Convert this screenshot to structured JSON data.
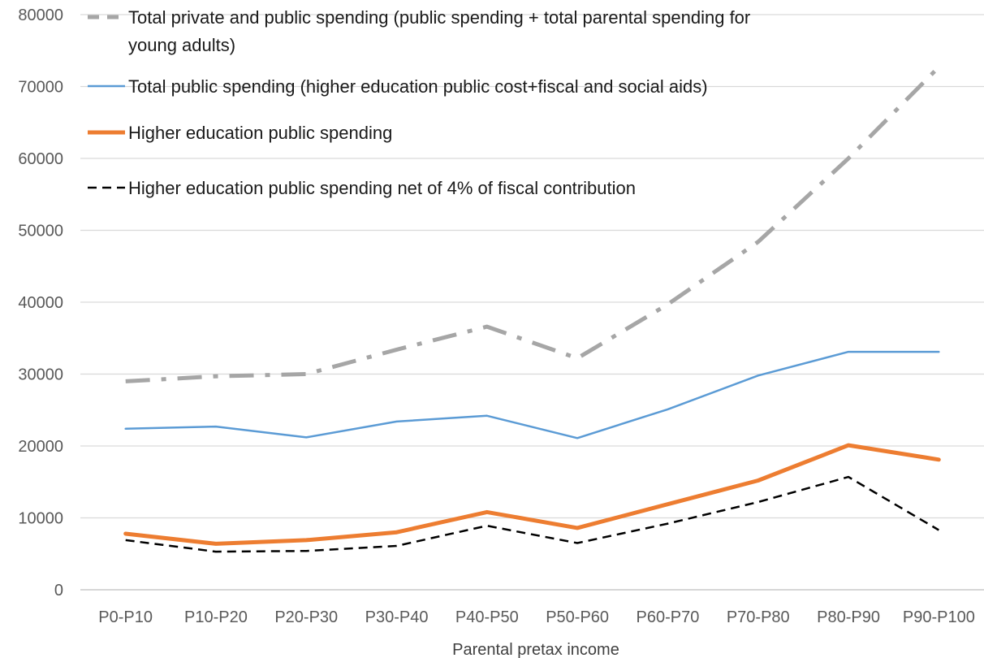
{
  "chart_data": {
    "type": "line",
    "title": "",
    "xlabel": "Parental pretax income",
    "ylabel": "",
    "categories": [
      "P0-P10",
      "P10-P20",
      "P20-P30",
      "P30-P40",
      "P40-P50",
      "P50-P60",
      "P60-P70",
      "P70-P80",
      "P80-P90",
      "P90-P100"
    ],
    "ylim": [
      0,
      80000
    ],
    "yticks": [
      0,
      10000,
      20000,
      30000,
      40000,
      50000,
      60000,
      70000,
      80000
    ],
    "grid": true,
    "legend_position": "top-left",
    "series": [
      {
        "name": "Total private and public spending (public spending + total parental spending for young adults)",
        "legend_lines": [
          "Total private and public spending (public spending + total parental spending for",
          "young adults)"
        ],
        "color": "#A6A6A6",
        "style": "dash-dot",
        "values": [
          29000,
          29700,
          30000,
          33400,
          36600,
          32200,
          39700,
          48400,
          60000,
          72700
        ]
      },
      {
        "name": "Total public spending (higher education public cost+fiscal and social aids)",
        "legend_lines": [
          "Total public spending (higher education public cost+fiscal and social aids)"
        ],
        "color": "#5B9BD5",
        "style": "solid",
        "values": [
          22400,
          22700,
          21200,
          23400,
          24200,
          21100,
          25100,
          29800,
          33100,
          33100
        ]
      },
      {
        "name": "Higher education public spending",
        "legend_lines": [
          "Higher education public spending"
        ],
        "color": "#ED7D31",
        "style": "thick",
        "values": [
          7800,
          6400,
          6900,
          8000,
          10800,
          8600,
          11900,
          15200,
          20100,
          18100
        ]
      },
      {
        "name": "Higher education public spending net of 4% of fiscal contribution",
        "legend_lines": [
          "Higher education public spending net of 4% of fiscal contribution"
        ],
        "color": "#000000",
        "style": "dashed",
        "values": [
          6900,
          5300,
          5400,
          6100,
          8900,
          6500,
          9200,
          12200,
          15700,
          8300
        ]
      }
    ]
  }
}
